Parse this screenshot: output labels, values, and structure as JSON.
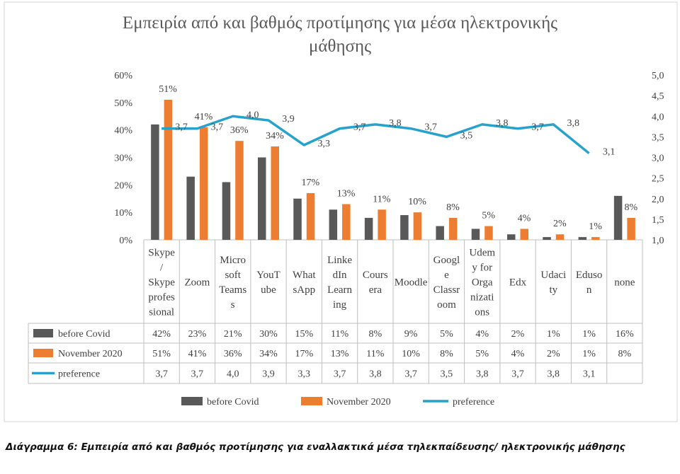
{
  "chart_data": {
    "type": "bar",
    "title": "Εμπειρία από και βαθμός προτίμησης για μέσα ηλεκτρονικής μάθησης",
    "title_lines": [
      "Εμπειρία από και βαθμός προτίμησης για μέσα ηλεκτρονικής",
      "μάθησης"
    ],
    "categories": [
      "Skype / Skype professional",
      "Zoom",
      "Microsoft Teams",
      "YouTube",
      "WhatsApp",
      "LinkedIn Learning",
      "Coursera",
      "Moodle",
      "Google Classroom",
      "Udemy for Organizations",
      "Edx",
      "Udacity",
      "Eduson",
      "none"
    ],
    "category_label_lines": [
      [
        "Skype",
        "/",
        "Skype",
        "profes",
        "sional"
      ],
      [
        "Zoom"
      ],
      [
        "Micro",
        "soft",
        "Teams",
        "s"
      ],
      [
        "YouT",
        "ube"
      ],
      [
        "What",
        "sApp"
      ],
      [
        "Linke",
        "dIn",
        "Learn",
        "ing"
      ],
      [
        "Cours",
        "era"
      ],
      [
        "Moodle"
      ],
      [
        "Googl",
        "e",
        "Classr",
        "oom"
      ],
      [
        "Udem",
        "y for",
        "Orga",
        "nizati",
        "ons"
      ],
      [
        "Edx"
      ],
      [
        "Udaci",
        "ty"
      ],
      [
        "Eduso",
        "n"
      ],
      [
        "none"
      ]
    ],
    "series": [
      {
        "name": "before Covid",
        "type": "bar",
        "axis": "left",
        "color": "#595959",
        "values": [
          42,
          23,
          21,
          30,
          15,
          11,
          8,
          9,
          5,
          4,
          2,
          1,
          1,
          16
        ],
        "table_labels": [
          "42%",
          "23%",
          "21%",
          "30%",
          "15%",
          "11%",
          "8%",
          "9%",
          "5%",
          "4%",
          "2%",
          "1%",
          "1%",
          "16%"
        ]
      },
      {
        "name": "November 2020",
        "type": "bar",
        "axis": "left",
        "color": "#ED7D31",
        "values": [
          51,
          41,
          36,
          34,
          17,
          13,
          11,
          10,
          8,
          5,
          4,
          2,
          1,
          8
        ],
        "labels": [
          "51%",
          "41%",
          "36%",
          "34%",
          "17%",
          "13%",
          "11%",
          "10%",
          "8%",
          "5%",
          "4%",
          "2%",
          "1%",
          "8%"
        ]
      },
      {
        "name": "preference",
        "type": "line",
        "axis": "right",
        "color": "#27A2CC",
        "values": [
          3.7,
          3.7,
          4.0,
          3.9,
          3.3,
          3.7,
          3.8,
          3.7,
          3.5,
          3.8,
          3.7,
          3.8,
          3.1,
          null
        ],
        "labels": [
          "3,7",
          "3,7",
          "4,0",
          "3,9",
          "3,3",
          "3,7",
          "3,8",
          "3,7",
          "3,5",
          "3,8",
          "3,7",
          "3,8",
          "3,1",
          ""
        ]
      }
    ],
    "y_left": {
      "min": 0,
      "max": 60,
      "ticks": [
        "0%",
        "10%",
        "20%",
        "30%",
        "40%",
        "50%",
        "60%"
      ]
    },
    "y_right": {
      "min": 1.0,
      "max": 5.0,
      "ticks": [
        "1,0",
        "1,5",
        "2,0",
        "2,5",
        "3,0",
        "3,5",
        "4,0",
        "4,5",
        "5,0"
      ]
    },
    "grid": false,
    "legend_position": "bottom",
    "data_table": true
  },
  "caption": "Διάγραμμα 6: Εμπειρία από και βαθμός προτίμησης για εναλλακτικά μέσα τηλεκπαίδευσης/ ηλεκτρονικής μάθησης"
}
